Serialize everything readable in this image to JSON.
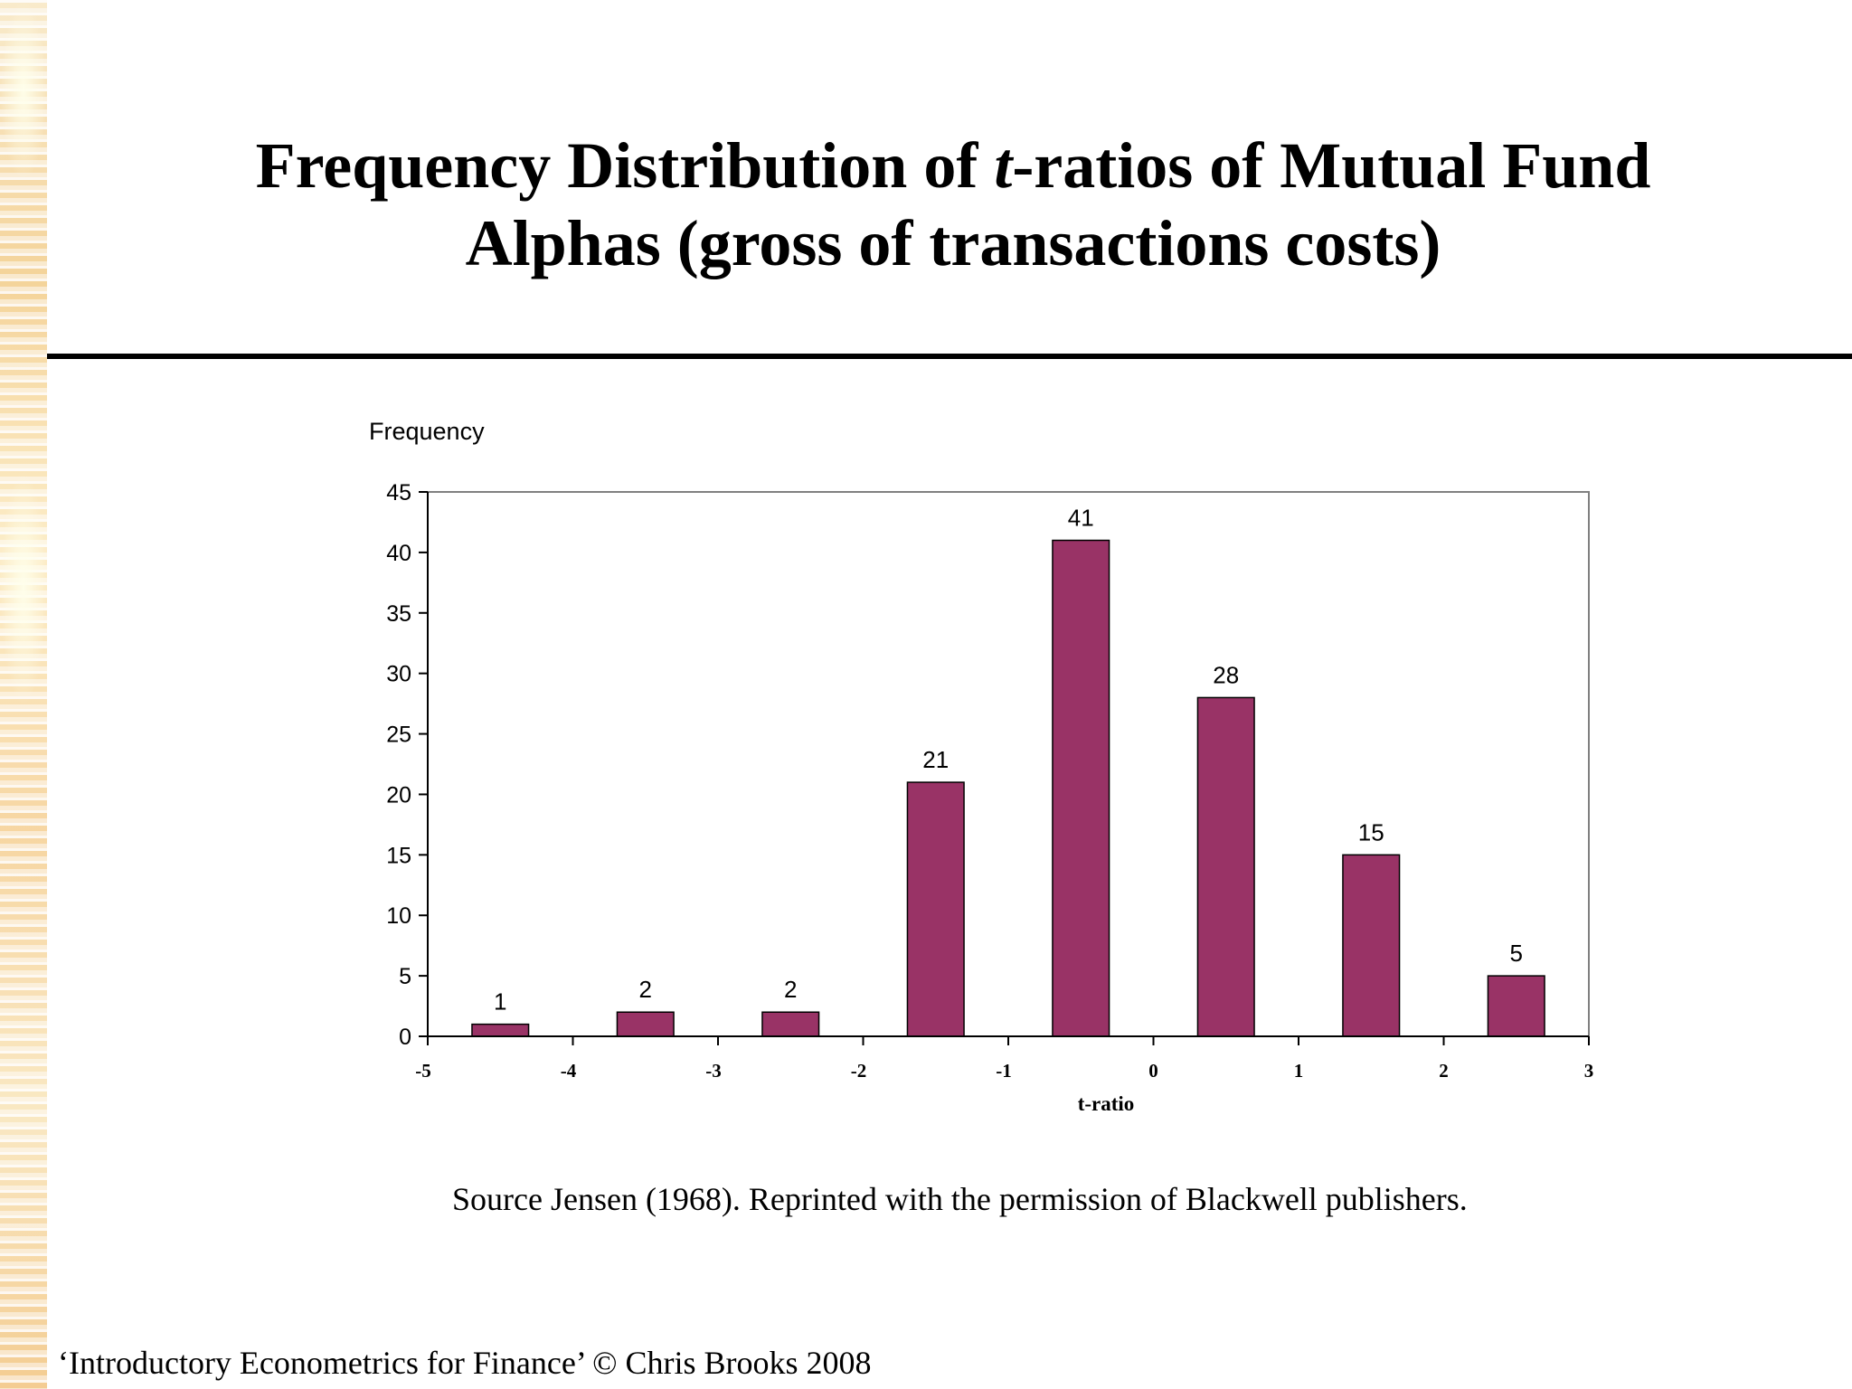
{
  "slide": {
    "title_before_italic": "Frequency Distribution of ",
    "title_italic": "t",
    "title_after_italic": "-ratios of Mutual Fund",
    "title_line2": "Alphas (gross of transactions costs)",
    "source_note": "Source Jensen (1968). Reprinted with the permission of Blackwell publishers.",
    "footer": "‘Introductory Econometrics for Finance’ © Chris Brooks 2008"
  },
  "chart_data": {
    "type": "bar",
    "title": "",
    "ylabel": "Frequency",
    "xlabel": "t-ratio",
    "bins": [
      [
        -5,
        -4
      ],
      [
        -4,
        -3
      ],
      [
        -3,
        -2
      ],
      [
        -2,
        -1
      ],
      [
        -1,
        0
      ],
      [
        0,
        1
      ],
      [
        1,
        2
      ],
      [
        2,
        3
      ]
    ],
    "values": [
      1,
      2,
      2,
      21,
      41,
      28,
      15,
      5
    ],
    "data_labels": [
      "1",
      "2",
      "2",
      "21",
      "41",
      "28",
      "15",
      "5"
    ],
    "x_ticks": [
      -5,
      -4,
      -3,
      -2,
      -1,
      0,
      1,
      2,
      3
    ],
    "x_tick_labels": [
      "-5",
      "-4",
      "-3",
      "-2",
      "-1",
      "0",
      "1",
      "2",
      "3"
    ],
    "y_ticks": [
      0,
      5,
      10,
      15,
      20,
      25,
      30,
      35,
      40,
      45
    ],
    "y_tick_labels": [
      "0",
      "5",
      "10",
      "15",
      "20",
      "25",
      "30",
      "35",
      "40",
      "45"
    ],
    "xlim": [
      -5,
      3
    ],
    "ylim": [
      0,
      45
    ],
    "grid": false,
    "legend": "none",
    "bar_color": "#993366"
  }
}
